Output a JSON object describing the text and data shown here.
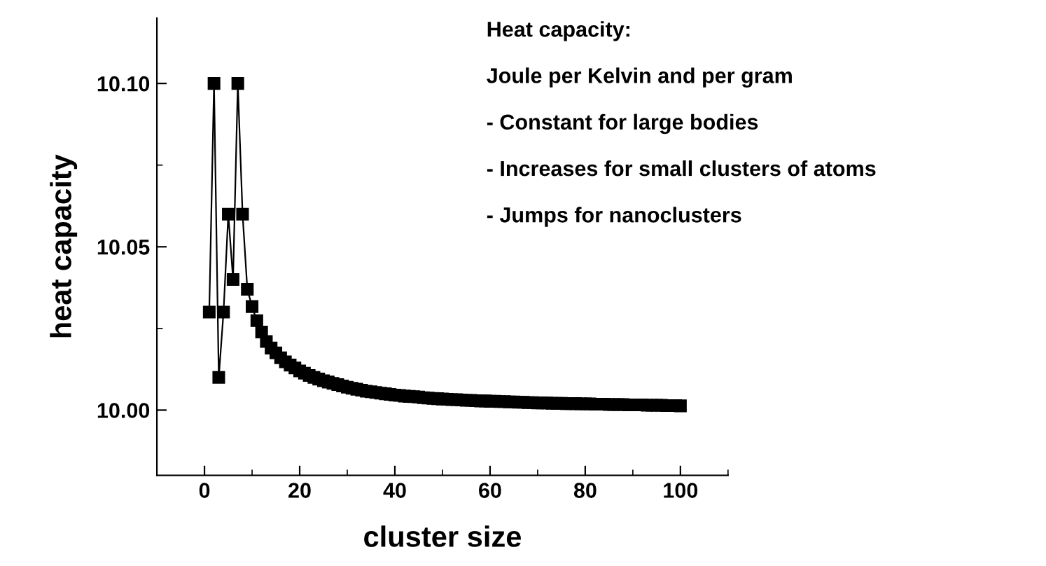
{
  "chart_data": {
    "type": "line",
    "xlabel": "cluster size",
    "ylabel": "heat capacity",
    "annotations": [
      "Heat capacity:",
      "Joule per Kelvin and per gram",
      "- Constant for large bodies",
      "- Increases for small clusters of atoms",
      "- Jumps for nanoclusters"
    ],
    "x": [
      1,
      2,
      3,
      4,
      5,
      6,
      7,
      8,
      9,
      10,
      11,
      12,
      13,
      14,
      15,
      16,
      17,
      18,
      19,
      20,
      21,
      22,
      23,
      24,
      25,
      26,
      27,
      28,
      29,
      30,
      31,
      32,
      33,
      34,
      35,
      36,
      37,
      38,
      39,
      40,
      41,
      42,
      43,
      44,
      45,
      46,
      47,
      48,
      49,
      50,
      51,
      52,
      53,
      54,
      55,
      56,
      57,
      58,
      59,
      60,
      61,
      62,
      63,
      64,
      65,
      66,
      67,
      68,
      69,
      70,
      71,
      72,
      73,
      74,
      75,
      76,
      77,
      78,
      79,
      80,
      81,
      82,
      83,
      84,
      85,
      86,
      87,
      88,
      89,
      90,
      91,
      92,
      93,
      94,
      95,
      96,
      97,
      98,
      99,
      100
    ],
    "series": [
      {
        "color": "#000000",
        "values": [
          10.03,
          10.1,
          10.01,
          10.03,
          10.06,
          10.04,
          10.1,
          10.06,
          10.037,
          10.0317,
          10.0274,
          10.0239,
          10.021,
          10.019,
          10.0175,
          10.016,
          10.0148,
          10.0138,
          10.0129,
          10.012,
          10.0113,
          10.0106,
          10.01,
          10.0095,
          10.009,
          10.0086,
          10.0082,
          10.0078,
          10.0074,
          10.007,
          10.0067,
          10.0064,
          10.0061,
          10.0058,
          10.0056,
          10.0054,
          10.0052,
          10.005,
          10.0048,
          10.0046,
          10.0045,
          10.0043,
          10.0042,
          10.0041,
          10.004,
          10.0038,
          10.0037,
          10.0036,
          10.0035,
          10.0034,
          10.0033,
          10.0032,
          10.0032,
          10.0031,
          10.003,
          10.003,
          10.0029,
          10.0028,
          10.0028,
          10.0027,
          10.0027,
          10.0026,
          10.0026,
          10.0025,
          10.0025,
          10.0024,
          10.0024,
          10.0023,
          10.0023,
          10.0022,
          10.0022,
          10.0022,
          10.0021,
          10.0021,
          10.0021,
          10.002,
          10.002,
          10.002,
          10.0019,
          10.0019,
          10.0019,
          10.0018,
          10.0018,
          10.0018,
          10.0017,
          10.0017,
          10.0017,
          10.0017,
          10.0016,
          10.0016,
          10.0016,
          10.0016,
          10.0015,
          10.0015,
          10.0015,
          10.0015,
          10.0014,
          10.0014,
          10.0014,
          10.0013
        ]
      }
    ],
    "xlim": [
      -10,
      110
    ],
    "xticks": [
      0,
      20,
      40,
      60,
      80,
      100
    ],
    "ylim": [
      9.98,
      10.12
    ],
    "yticks": [
      {
        "value": 10.0,
        "label": "10.00"
      },
      {
        "value": 10.05,
        "label": "10.05"
      },
      {
        "value": 10.1,
        "label": "10.10"
      }
    ],
    "marker": "square",
    "line_style": "solid",
    "grid": false,
    "legend": false
  }
}
